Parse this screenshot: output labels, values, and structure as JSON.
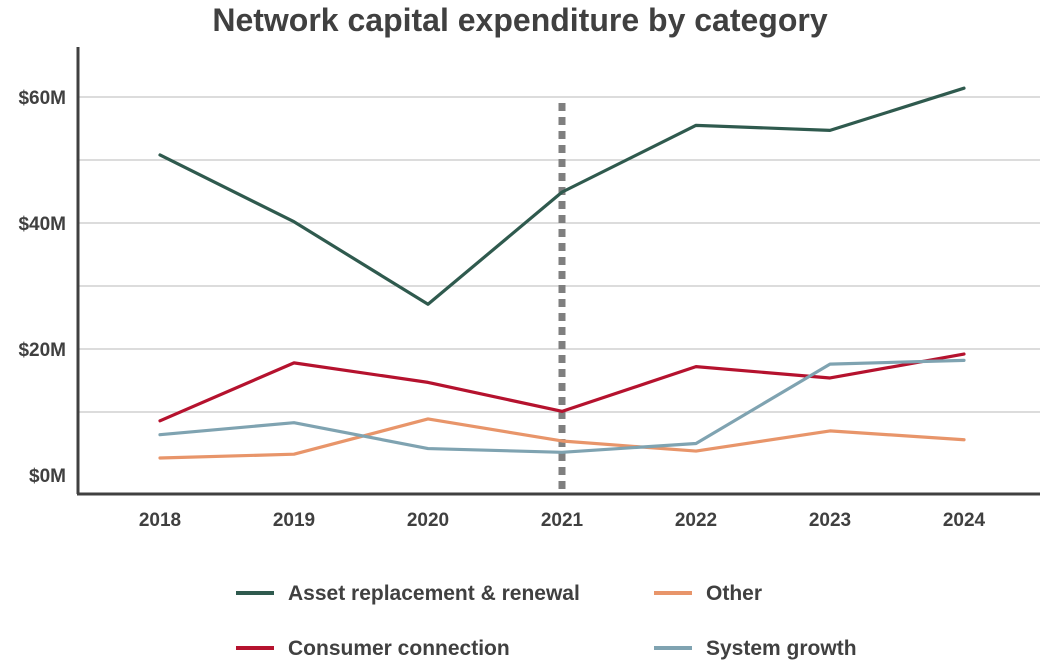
{
  "chart_data": {
    "type": "line",
    "title": "Network capital expenditure by category",
    "xlabel": "",
    "ylabel": "",
    "categories": [
      "2018",
      "2019",
      "2020",
      "2021",
      "2022",
      "2023",
      "2024"
    ],
    "yticks": [
      {
        "value": 0,
        "label": "$0M"
      },
      {
        "value": 20,
        "label": "$20M"
      },
      {
        "value": 40,
        "label": "$40M"
      },
      {
        "value": 60,
        "label": "$60M"
      }
    ],
    "ylim": [
      0,
      68
    ],
    "grid": true,
    "grid_step": 10,
    "vertical_marker": {
      "category": "2021",
      "style": "dotted",
      "color": "#7f7f7f"
    },
    "legend_position": "bottom",
    "series": [
      {
        "name": "Asset replacement & renewal",
        "color": "#2f5a4e",
        "values": [
          50.8,
          40.2,
          27.1,
          44.9,
          55.5,
          54.7,
          61.4
        ]
      },
      {
        "name": "Other",
        "color": "#e8956a",
        "values": [
          2.7,
          3.3,
          8.9,
          5.4,
          3.8,
          7.0,
          5.6
        ]
      },
      {
        "name": "Consumer connection",
        "color": "#b5122e",
        "values": [
          8.6,
          17.8,
          14.7,
          10.1,
          17.2,
          15.4,
          19.2
        ]
      },
      {
        "name": "System growth",
        "color": "#7fa3b1",
        "values": [
          6.4,
          8.3,
          4.2,
          3.6,
          5.0,
          17.6,
          18.2
        ]
      }
    ]
  }
}
